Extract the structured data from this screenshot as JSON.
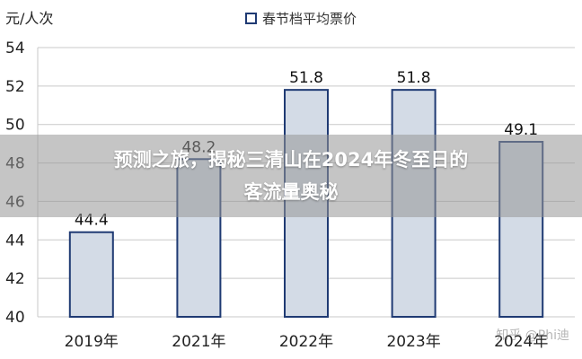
{
  "chart_data": {
    "type": "bar",
    "categories": [
      "2019年",
      "2021年",
      "2022年",
      "2023年",
      "2024年"
    ],
    "series": [
      {
        "name": "春节档平均票价",
        "values": [
          44.4,
          48.2,
          51.8,
          51.8,
          49.1
        ]
      }
    ],
    "value_labels": [
      "44.4",
      "48.2",
      "51.8",
      "51.8",
      "49.1"
    ],
    "ylabel": "元/人次",
    "ylim": [
      40,
      54
    ],
    "yticks": [
      40,
      42,
      44,
      46,
      48,
      50,
      52,
      54
    ],
    "grid": true,
    "legend_position": "top",
    "colors": {
      "bar_fill": "#d3dbe6",
      "bar_stroke": "#1f3a73",
      "legend_swatch": "#1f3a73"
    }
  },
  "overlay": {
    "headline_line1": "预测之旅，揭秘三清山在2024年冬至日的",
    "headline_line2": "客流量奥秘"
  },
  "watermark": "知乎 @Phi迪"
}
